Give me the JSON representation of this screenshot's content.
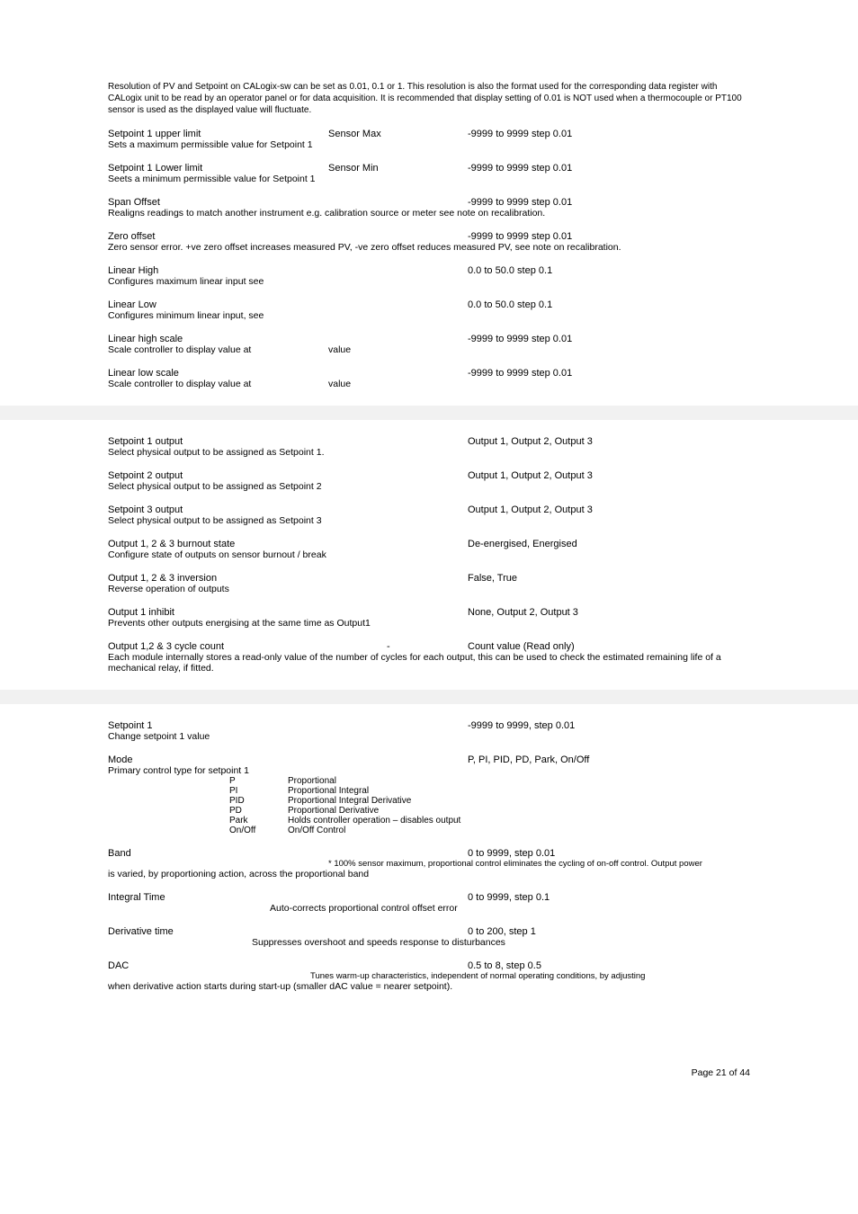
{
  "intro": "Resolution of PV and Setpoint on CALogix-sw can be set as 0.01, 0.1 or 1. This resolution is also the format used for the corresponding data register with CALogix unit to be read by an operator panel or for data acquisition. It is recommended that display setting of 0.01 is NOT used when a thermocouple or PT100 sensor is used as the displayed value will fluctuate.",
  "section1": [
    {
      "title": "Setpoint 1 upper limit",
      "mid": "Sensor Max",
      "val": "-9999 to 9999 step 0.01",
      "desc": "Sets a maximum permissible value for Setpoint 1"
    },
    {
      "title": "Setpoint 1 Lower limit",
      "mid": "Sensor Min",
      "val": "-9999 to 9999 step 0.01",
      "desc": "Seets a minimum permissible value for Setpoint 1"
    },
    {
      "title": "Span Offset",
      "mid": "",
      "val": "-9999 to 9999 step 0.01",
      "desc": "Realigns readings to match another instrument e.g. calibration source or meter see note on recalibration."
    },
    {
      "title": "Zero offset",
      "mid": "",
      "val": "-9999 to 9999 step 0.01",
      "desc": "Zero sensor error. +ve zero offset increases measured PV, -ve zero offset reduces measured PV, see note on recalibration."
    },
    {
      "title": "Linear High",
      "mid": "",
      "val": "0.0 to 50.0 step 0.1",
      "desc": "Configures maximum linear input see"
    },
    {
      "title": "Linear Low",
      "mid": "",
      "val": "0.0 to 50.0 step 0.1",
      "desc": "Configures minimum linear input, see"
    },
    {
      "title": "Linear high scale",
      "mid": "",
      "val": "-9999 to 9999 step 0.01",
      "desc": "Scale controller to display value at",
      "descMid": "value"
    },
    {
      "title": "Linear low scale",
      "mid": "",
      "val": "-9999 to 9999 step 0.01",
      "desc": "Scale controller to display value at",
      "descMid": "value"
    }
  ],
  "section2": [
    {
      "title": "Setpoint 1 output",
      "val": "Output 1, Output 2, Output 3",
      "desc": "Select physical output to be assigned as Setpoint 1."
    },
    {
      "title": "Setpoint 2 output",
      "val": "Output 1, Output 2, Output 3",
      "desc": "Select physical output to be assigned as Setpoint 2"
    },
    {
      "title": "Setpoint 3 output",
      "val": "Output 1, Output 2, Output 3",
      "desc": "Select physical output to be assigned as Setpoint 3"
    },
    {
      "title": "Output 1, 2 & 3 burnout state",
      "val": "De-energised, Energised",
      "desc": "Configure state of outputs on sensor burnout / break"
    },
    {
      "title": "Output 1, 2 & 3 inversion",
      "val": "False, True",
      "desc": "Reverse operation of outputs"
    },
    {
      "title": "Output 1 inhibit",
      "val": "None, Output 2, Output 3",
      "desc": "Prevents other outputs energising at the same time as Output1"
    },
    {
      "title": "Output 1,2 & 3 cycle count",
      "mid": "-",
      "val": "Count value (Read only)",
      "desc": "Each module internally stores a read-only value of the number of cycles for each output, this can be used to check the estimated remaining life of a mechanical relay, if fitted."
    }
  ],
  "section3": {
    "sp1": {
      "title": "Setpoint 1",
      "val": "-9999 to 9999, step 0.01",
      "desc": "Change setpoint 1 value"
    },
    "mode": {
      "title": "Mode",
      "val": "P, PI, PID, PD, Park, On/Off",
      "desc": "Primary control type for setpoint 1"
    },
    "modeRows": [
      {
        "k": "P",
        "v": "Proportional"
      },
      {
        "k": "PI",
        "v": "Proportional Integral"
      },
      {
        "k": "PID",
        "v": "Proportional Integral Derivative"
      },
      {
        "k": "PD",
        "v": "Proportional Derivative"
      },
      {
        "k": "Park",
        "v": "Holds controller operation – disables output"
      },
      {
        "k": "On/Off",
        "v": "On/Off Control"
      }
    ],
    "band": {
      "title": "Band",
      "val": "0 to 9999, step 0.01",
      "note": "* 100% sensor maximum, proportional control eliminates the cycling of on-off control. Output power",
      "desc": "is varied, by proportioning action, across the proportional band"
    },
    "intg": {
      "title": "Integral Time",
      "val": "0 to 9999, step 0.1",
      "note": "Auto-corrects proportional control offset error"
    },
    "deriv": {
      "title": "Derivative time",
      "val": "0 to 200, step 1",
      "note": "Suppresses overshoot and speeds response to disturbances"
    },
    "dac": {
      "title": "DAC",
      "val": "0.5 to 8, step 0.5",
      "note": "Tunes warm-up characteristics, independent of normal operating conditions, by adjusting",
      "desc": "when derivative action starts during start-up (smaller dAC value = nearer setpoint)."
    }
  },
  "footer": "Page 21 of 44"
}
